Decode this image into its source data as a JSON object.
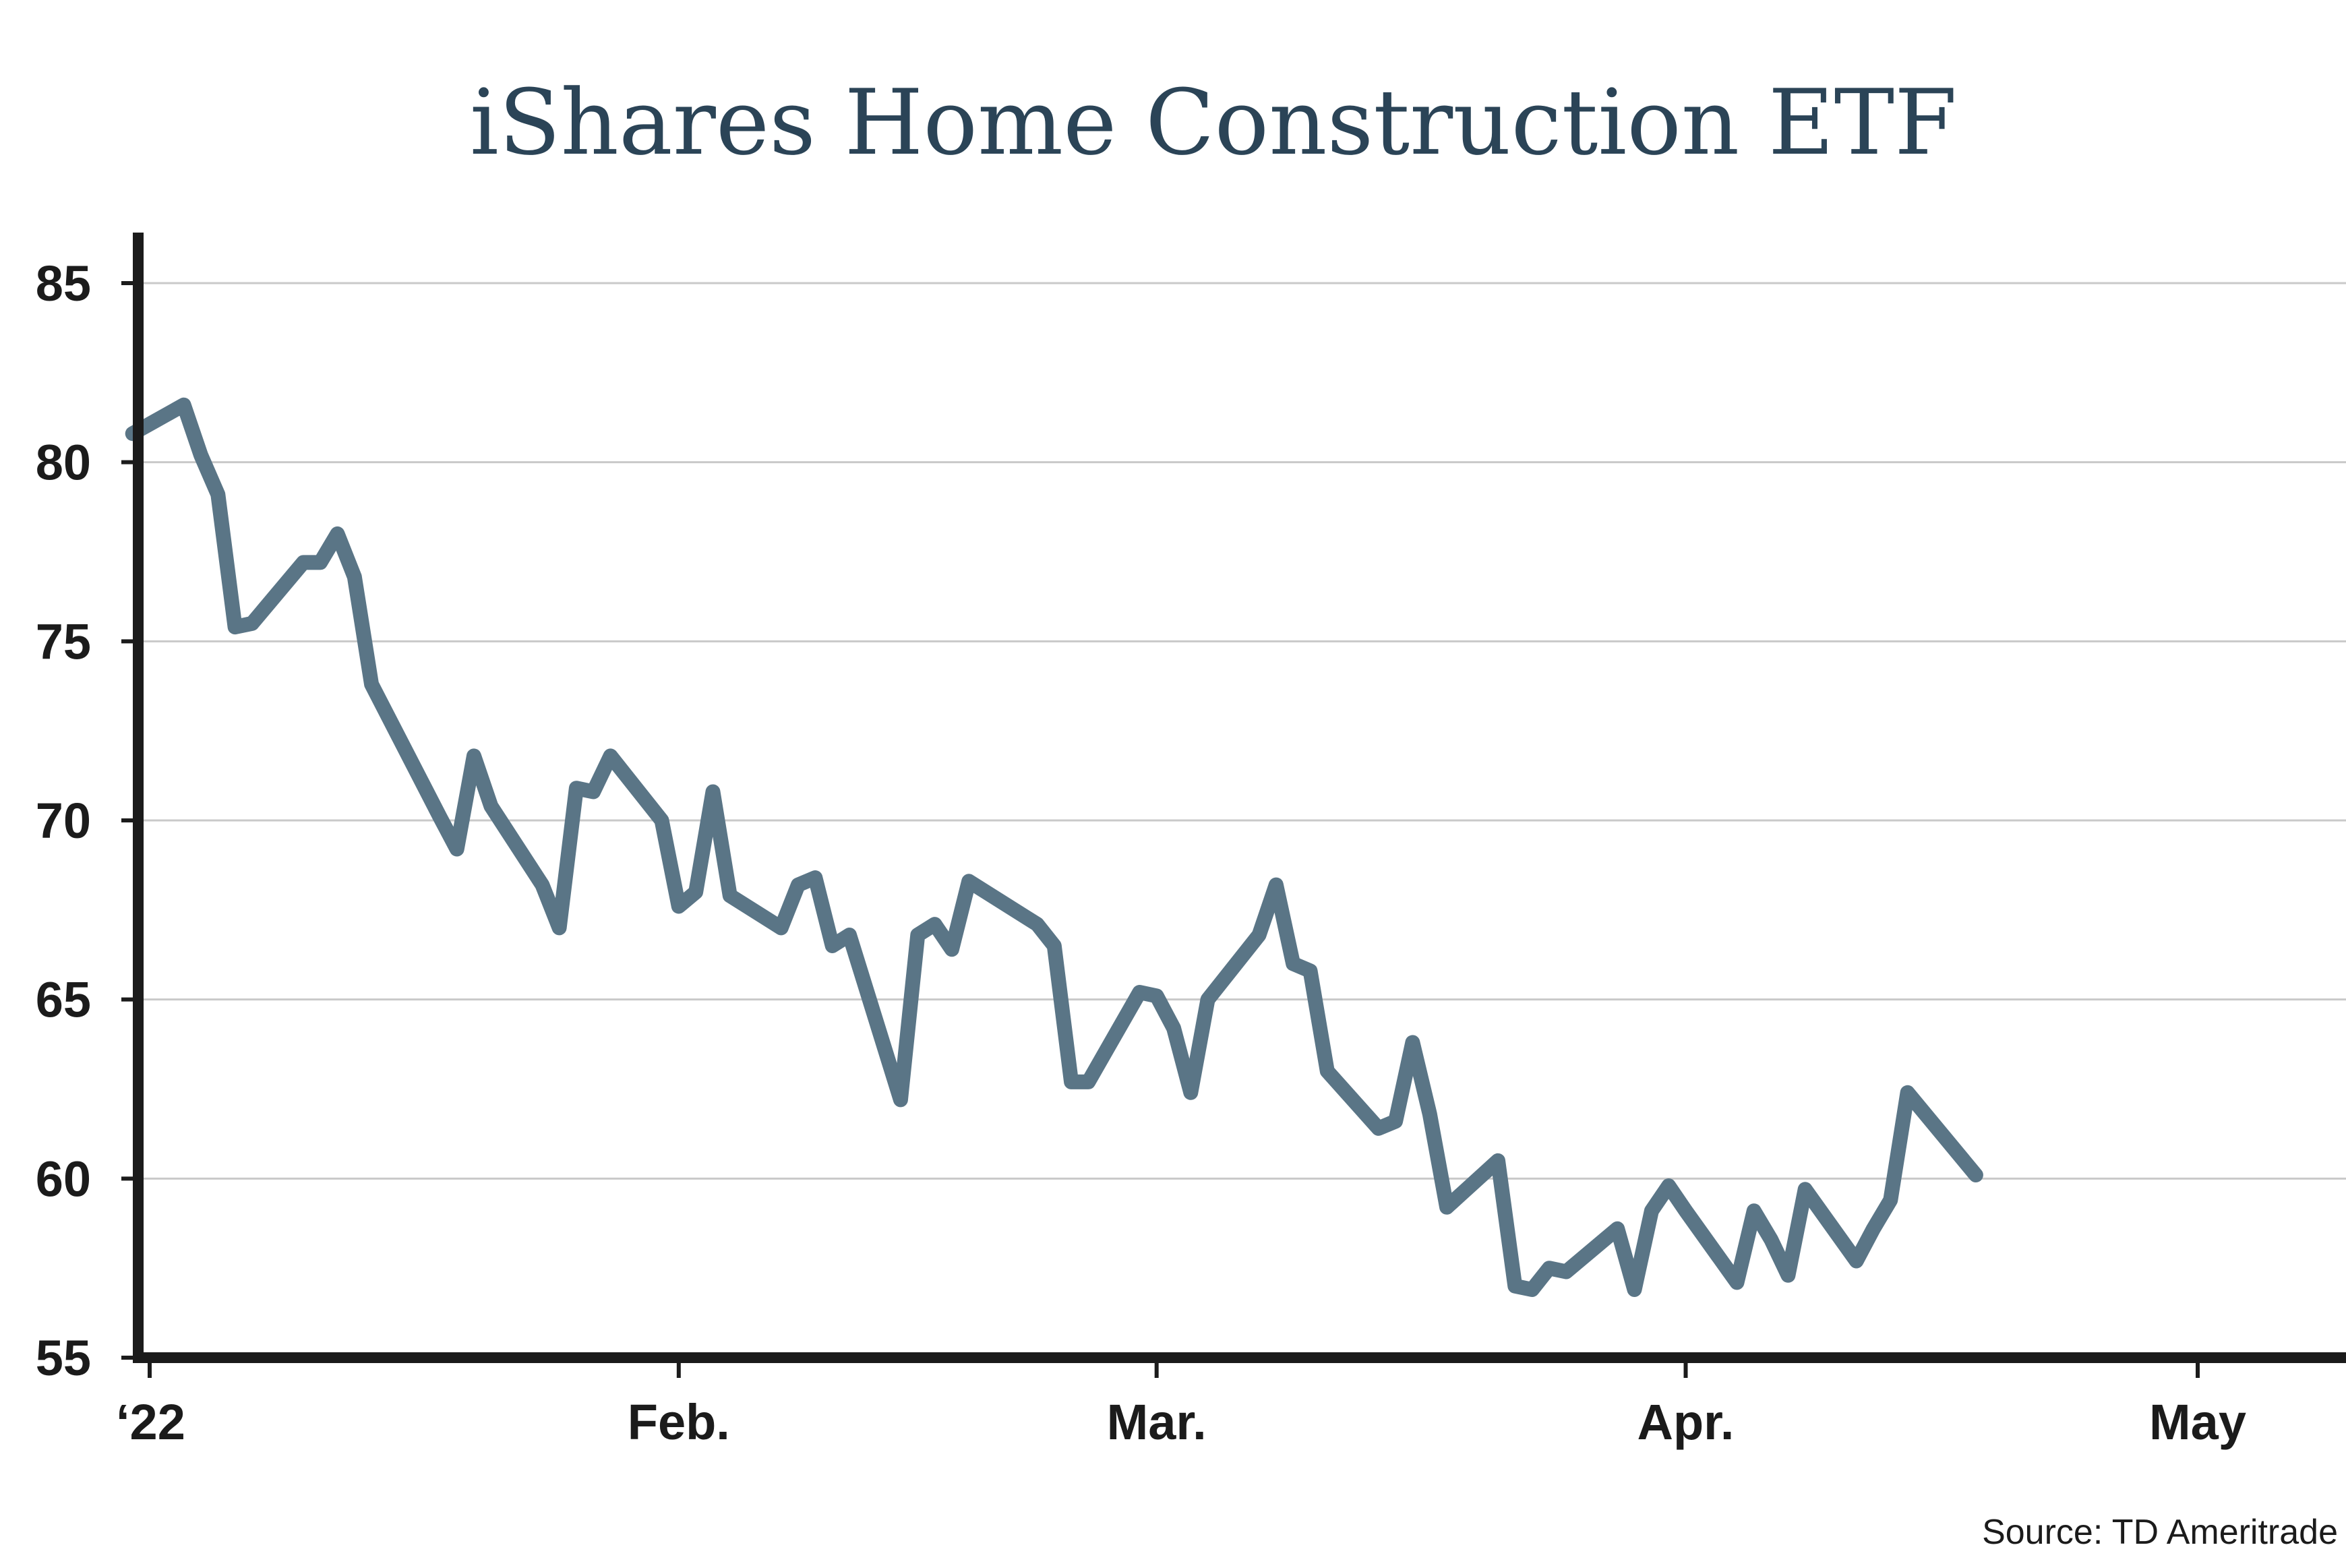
{
  "chart_data": {
    "type": "line",
    "title": "iShares Home Construction ETF",
    "source": "Source: TD Ameritrade",
    "xlabel": "",
    "ylabel": "",
    "ylim": [
      55,
      85
    ],
    "yticks": [
      55,
      60,
      65,
      70,
      75,
      80,
      85
    ],
    "xticks": [
      {
        "label": "‘22",
        "date": "2022-01-01"
      },
      {
        "label": "Feb.",
        "date": "2022-02-01"
      },
      {
        "label": "Mar.",
        "date": "2022-03-01"
      },
      {
        "label": "Apr.",
        "date": "2022-04-01"
      },
      {
        "label": "May",
        "date": "2022-05-01"
      }
    ],
    "grid": true,
    "colors": {
      "series": "#5a7586",
      "title": "#2b4457",
      "axis": "#1b1b1b",
      "grid": "#c9c9c9"
    },
    "series": [
      {
        "points": [
          [
            "2021-12-31",
            80.8
          ],
          [
            "2022-01-03",
            81.6
          ],
          [
            "2022-01-04",
            80.2
          ],
          [
            "2022-01-05",
            79.1
          ],
          [
            "2022-01-06",
            75.4
          ],
          [
            "2022-01-07",
            75.5
          ],
          [
            "2022-01-10",
            77.2
          ],
          [
            "2022-01-11",
            77.2
          ],
          [
            "2022-01-12",
            78.0
          ],
          [
            "2022-01-13",
            76.8
          ],
          [
            "2022-01-14",
            73.8
          ],
          [
            "2022-01-18",
            70.1
          ],
          [
            "2022-01-19",
            69.2
          ],
          [
            "2022-01-20",
            71.8
          ],
          [
            "2022-01-21",
            70.4
          ],
          [
            "2022-01-24",
            68.2
          ],
          [
            "2022-01-25",
            67.0
          ],
          [
            "2022-01-26",
            70.9
          ],
          [
            "2022-01-27",
            70.8
          ],
          [
            "2022-01-28",
            71.8
          ],
          [
            "2022-01-31",
            70.0
          ],
          [
            "2022-02-01",
            67.6
          ],
          [
            "2022-02-02",
            68.0
          ],
          [
            "2022-02-03",
            70.8
          ],
          [
            "2022-02-04",
            67.9
          ],
          [
            "2022-02-07",
            67.0
          ],
          [
            "2022-02-08",
            68.2
          ],
          [
            "2022-02-09",
            68.4
          ],
          [
            "2022-02-10",
            66.5
          ],
          [
            "2022-02-11",
            66.8
          ],
          [
            "2022-02-14",
            62.2
          ],
          [
            "2022-02-15",
            66.8
          ],
          [
            "2022-02-16",
            67.1
          ],
          [
            "2022-02-17",
            66.4
          ],
          [
            "2022-02-18",
            68.3
          ],
          [
            "2022-02-22",
            67.1
          ],
          [
            "2022-02-23",
            66.5
          ],
          [
            "2022-02-24",
            62.7
          ],
          [
            "2022-02-25",
            62.7
          ],
          [
            "2022-02-28",
            65.2
          ],
          [
            "2022-03-01",
            65.1
          ],
          [
            "2022-03-02",
            64.2
          ],
          [
            "2022-03-03",
            62.4
          ],
          [
            "2022-03-04",
            65.0
          ],
          [
            "2022-03-07",
            66.8
          ],
          [
            "2022-03-08",
            68.2
          ],
          [
            "2022-03-09",
            66.0
          ],
          [
            "2022-03-10",
            65.8
          ],
          [
            "2022-03-11",
            63.0
          ],
          [
            "2022-03-14",
            61.4
          ],
          [
            "2022-03-15",
            61.6
          ],
          [
            "2022-03-16",
            63.8
          ],
          [
            "2022-03-17",
            61.8
          ],
          [
            "2022-03-18",
            59.2
          ],
          [
            "2022-03-21",
            60.5
          ],
          [
            "2022-03-22",
            57.0
          ],
          [
            "2022-03-23",
            56.9
          ],
          [
            "2022-03-24",
            57.5
          ],
          [
            "2022-03-25",
            57.4
          ],
          [
            "2022-03-28",
            58.6
          ],
          [
            "2022-03-29",
            56.9
          ],
          [
            "2022-03-30",
            59.1
          ],
          [
            "2022-03-31",
            59.8
          ],
          [
            "2022-04-01",
            59.1
          ],
          [
            "2022-04-04",
            57.1
          ],
          [
            "2022-04-05",
            59.1
          ],
          [
            "2022-04-06",
            58.3
          ],
          [
            "2022-04-07",
            57.3
          ],
          [
            "2022-04-08",
            59.7
          ],
          [
            "2022-04-11",
            57.7
          ],
          [
            "2022-04-12",
            58.6
          ],
          [
            "2022-04-13",
            59.4
          ],
          [
            "2022-04-14",
            62.4
          ],
          [
            "2022-04-18",
            60.1
          ]
        ]
      }
    ]
  }
}
